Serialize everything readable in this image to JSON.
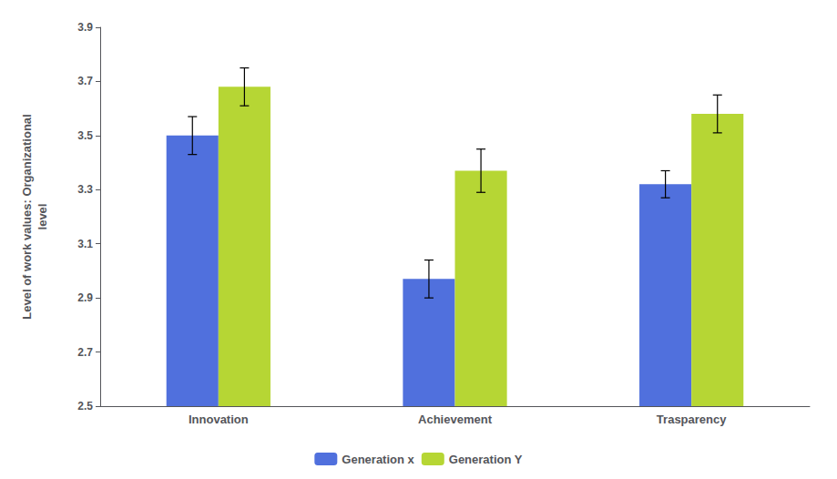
{
  "chart_data": {
    "type": "bar",
    "categories": [
      "Innovation",
      "Achievement",
      "Trasparency"
    ],
    "ylabel": "Level of work values: Organizational\nlevel",
    "series": [
      {
        "name": "Generation x",
        "values": [
          3.5,
          2.97,
          3.32
        ],
        "errors": [
          0.07,
          0.07,
          0.05
        ]
      },
      {
        "name": "Generation Y",
        "values": [
          3.68,
          3.37,
          3.58
        ],
        "errors": [
          0.07,
          0.08,
          0.07
        ]
      }
    ],
    "ylim": [
      2.5,
      3.9
    ],
    "yticks": [
      2.5,
      2.7,
      2.9,
      3.1,
      3.3,
      3.5,
      3.7,
      3.9
    ],
    "grid": false,
    "legend": "bottom"
  }
}
